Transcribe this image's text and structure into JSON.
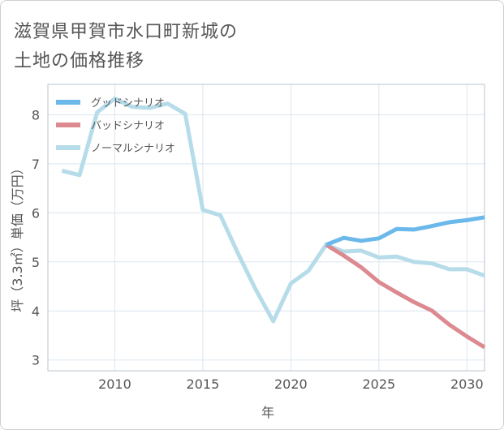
{
  "title_lines": [
    "滋賀県甲賀市水口町新城の",
    "土地の価格推移"
  ],
  "chart_data": {
    "type": "line",
    "xlabel": "年",
    "ylabel": "坪（3.3㎡）単価（万円）",
    "xlim": [
      2006.2,
      2031
    ],
    "ylim": [
      2.78,
      8.62
    ],
    "xticks": [
      2010,
      2015,
      2020,
      2025,
      2030
    ],
    "yticks": [
      3,
      4,
      5,
      6,
      7,
      8
    ],
    "grid": true,
    "legend_position": "top-left",
    "series": [
      {
        "name": "グッドシナリオ",
        "color": "#6bb8ea",
        "x": [
          2022,
          2023,
          2024,
          2025,
          2026,
          2027,
          2028,
          2029,
          2030,
          2031
        ],
        "values": [
          5.35,
          5.49,
          5.43,
          5.48,
          5.67,
          5.66,
          5.73,
          5.81,
          5.85,
          5.91
        ]
      },
      {
        "name": "バッドシナリオ",
        "color": "#dc8a90",
        "x": [
          2022,
          2023,
          2024,
          2025,
          2026,
          2027,
          2028,
          2029,
          2030,
          2031
        ],
        "values": [
          5.35,
          5.13,
          4.89,
          4.59,
          4.38,
          4.18,
          4.01,
          3.72,
          3.48,
          3.26
        ]
      },
      {
        "name": "ノーマルシナリオ",
        "color": "#b6dcea",
        "x": [
          2007,
          2008,
          2009,
          2010,
          2011,
          2012,
          2013,
          2014,
          2015,
          2016,
          2017,
          2018,
          2019,
          2020,
          2021,
          2022,
          2023,
          2024,
          2025,
          2026,
          2027,
          2028,
          2029,
          2030,
          2031
        ],
        "values": [
          6.86,
          6.77,
          8.05,
          8.33,
          8.16,
          8.14,
          8.23,
          8.02,
          6.06,
          5.95,
          5.17,
          4.44,
          3.79,
          4.56,
          4.82,
          5.35,
          5.21,
          5.23,
          5.09,
          5.11,
          5.0,
          4.97,
          4.85,
          4.85,
          4.72
        ]
      }
    ]
  }
}
